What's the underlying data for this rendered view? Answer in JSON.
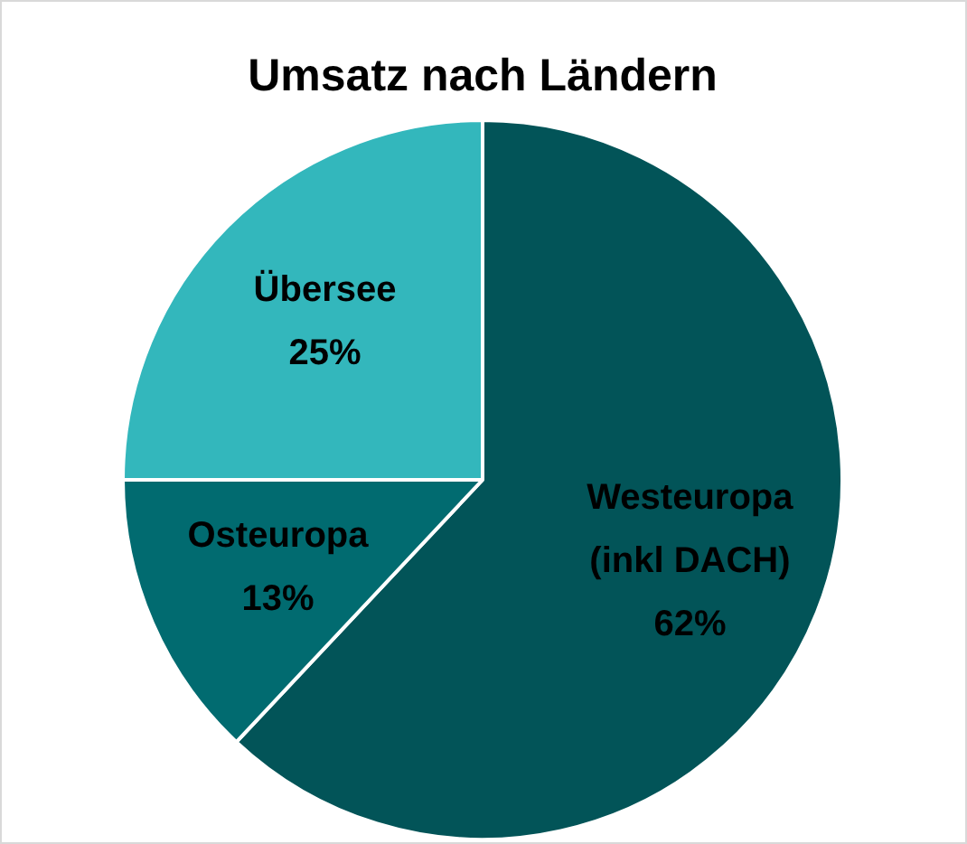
{
  "chart_data": {
    "type": "pie",
    "title": "Umsatz nach Ländern",
    "categories": [
      "Westeuropa (inkl DACH)",
      "Osteuropa",
      "Übersee"
    ],
    "values": [
      62,
      13,
      25
    ],
    "colors": [
      "#025458",
      "#016b70",
      "#33b7bc"
    ],
    "value_labels": [
      "62%",
      "13%",
      "25%"
    ],
    "legend": false
  }
}
